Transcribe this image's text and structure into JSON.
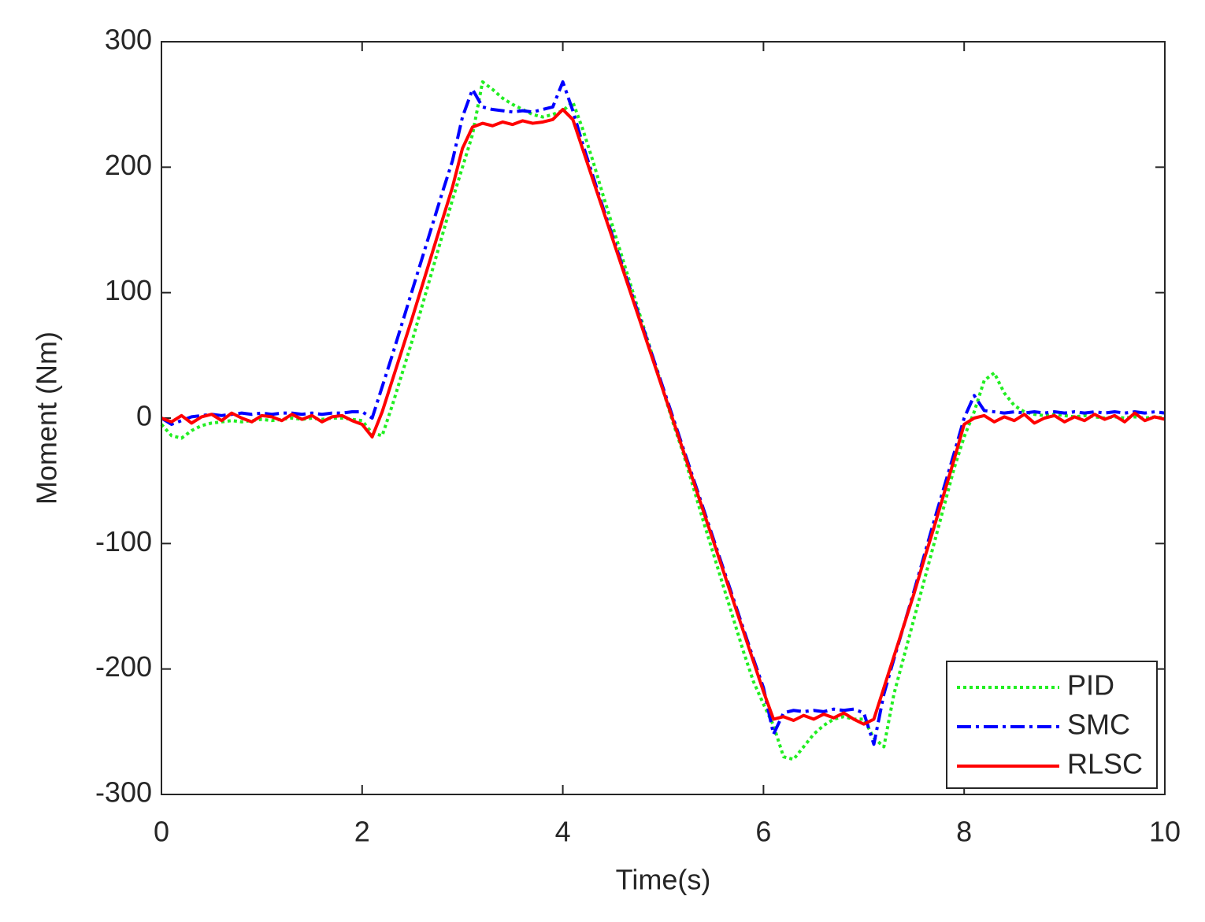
{
  "chart_data": {
    "type": "line",
    "xlabel": "Time(s)",
    "ylabel": "Moment (Nm)",
    "x": [
      0,
      0.1,
      0.2,
      0.3,
      0.4,
      0.5,
      0.6,
      0.7,
      0.8,
      0.9,
      1,
      1.1,
      1.2,
      1.3,
      1.4,
      1.5,
      1.6,
      1.7,
      1.8,
      1.9,
      2,
      2.1,
      2.2,
      2.3,
      2.4,
      2.5,
      2.6,
      2.7,
      2.8,
      2.9,
      3,
      3.1,
      3.2,
      3.3,
      3.4,
      3.5,
      3.6,
      3.7,
      3.8,
      3.9,
      4,
      4.1,
      4.2,
      4.3,
      4.4,
      4.5,
      4.6,
      4.7,
      4.8,
      4.9,
      5,
      5.1,
      5.2,
      5.3,
      5.4,
      5.5,
      5.6,
      5.7,
      5.8,
      5.9,
      6,
      6.1,
      6.2,
      6.3,
      6.4,
      6.5,
      6.6,
      6.7,
      6.8,
      6.9,
      7,
      7.1,
      7.2,
      7.3,
      7.4,
      7.5,
      7.6,
      7.7,
      7.8,
      7.9,
      8,
      8.1,
      8.2,
      8.3,
      8.4,
      8.5,
      8.6,
      8.7,
      8.8,
      8.9,
      9,
      9.1,
      9.2,
      9.3,
      9.4,
      9.5,
      9.6,
      9.7,
      9.8,
      9.9,
      10
    ],
    "series": [
      {
        "name": "PID",
        "color": "#22ee22",
        "linestyle": "dotted",
        "values": [
          -5,
          -14,
          -16,
          -10,
          -6,
          -4,
          -3,
          -2,
          -3,
          -2,
          -1,
          -2,
          -1,
          0,
          -1,
          0,
          -1,
          0,
          0,
          -1,
          -2,
          -12,
          -14,
          10,
          36,
          62,
          90,
          118,
          146,
          174,
          200,
          226,
          268,
          262,
          255,
          250,
          246,
          242,
          240,
          242,
          245,
          252,
          230,
          205,
          178,
          152,
          126,
          100,
          74,
          48,
          22,
          -4,
          -28,
          -55,
          -82,
          -108,
          -134,
          -160,
          -186,
          -210,
          -228,
          -245,
          -270,
          -272,
          -262,
          -252,
          -245,
          -240,
          -238,
          -240,
          -240,
          -255,
          -262,
          -220,
          -190,
          -160,
          -130,
          -100,
          -70,
          -40,
          -15,
          5,
          30,
          36,
          20,
          10,
          5,
          3,
          2,
          3,
          2,
          1,
          2,
          1,
          0,
          1,
          0,
          1,
          0,
          1,
          0
        ]
      },
      {
        "name": "SMC",
        "color": "#0000ff",
        "linestyle": "dashdot",
        "values": [
          0,
          -5,
          -2,
          1,
          2,
          3,
          2,
          3,
          4,
          3,
          4,
          3,
          4,
          4,
          3,
          4,
          3,
          4,
          4,
          5,
          5,
          0,
          25,
          50,
          76,
          102,
          128,
          154,
          180,
          205,
          240,
          262,
          248,
          246,
          245,
          244,
          245,
          244,
          246,
          248,
          268,
          245,
          218,
          193,
          168,
          144,
          120,
          96,
          72,
          48,
          24,
          0,
          -24,
          -48,
          -72,
          -96,
          -120,
          -144,
          -168,
          -192,
          -215,
          -252,
          -235,
          -233,
          -234,
          -233,
          -234,
          -232,
          -233,
          -232,
          -235,
          -260,
          -220,
          -192,
          -165,
          -138,
          -110,
          -82,
          -55,
          -28,
          0,
          18,
          6,
          5,
          4,
          5,
          4,
          5,
          4,
          5,
          4,
          5,
          4,
          5,
          4,
          5,
          4,
          5,
          4,
          5,
          4
        ]
      },
      {
        "name": "RLSC",
        "color": "#ff0000",
        "linestyle": "solid",
        "values": [
          0,
          -3,
          2,
          -4,
          1,
          3,
          -2,
          4,
          0,
          -3,
          2,
          1,
          -2,
          3,
          -1,
          2,
          -3,
          1,
          2,
          -2,
          -5,
          -15,
          5,
          30,
          55,
          80,
          106,
          132,
          158,
          184,
          215,
          232,
          235,
          233,
          236,
          234,
          237,
          235,
          236,
          238,
          246,
          238,
          214,
          190,
          166,
          142,
          118,
          94,
          70,
          46,
          22,
          -2,
          -26,
          -50,
          -74,
          -98,
          -122,
          -146,
          -170,
          -194,
          -218,
          -240,
          -238,
          -241,
          -237,
          -240,
          -236,
          -239,
          -235,
          -240,
          -244,
          -240,
          -215,
          -190,
          -165,
          -140,
          -113,
          -87,
          -60,
          -33,
          -5,
          0,
          2,
          -3,
          1,
          -2,
          3,
          -4,
          0,
          2,
          -3,
          1,
          -2,
          3,
          -1,
          2,
          -3,
          4,
          -2,
          1,
          -1
        ]
      }
    ],
    "xlim": [
      0,
      10
    ],
    "xticks": [
      0,
      2,
      4,
      6,
      8,
      10
    ],
    "ylim": [
      -300,
      300
    ],
    "yticks": [
      -300,
      -200,
      -100,
      0,
      100,
      200,
      300
    ],
    "grid": false,
    "legend": "lower right"
  }
}
